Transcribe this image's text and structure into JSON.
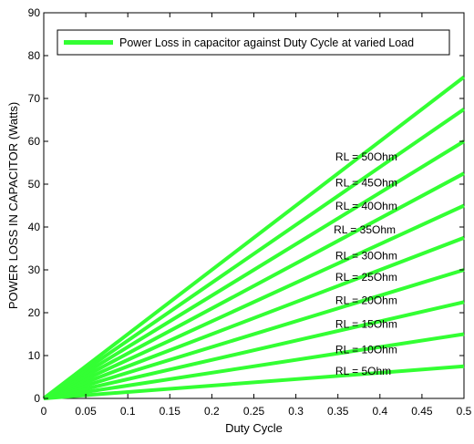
{
  "chart_data": {
    "type": "line",
    "title": "",
    "xlabel": "Duty Cycle",
    "ylabel": "POWER LOSS IN CAPACITOR (Watts)",
    "xlim": [
      0,
      0.5
    ],
    "ylim": [
      0,
      90
    ],
    "x_ticks": [
      "0",
      "0.05",
      "0.1",
      "0.15",
      "0.2",
      "0.25",
      "0.3",
      "0.35",
      "0.4",
      "0.45",
      "0.5"
    ],
    "y_ticks": [
      "0",
      "10",
      "20",
      "30",
      "40",
      "50",
      "60",
      "70",
      "80",
      "90"
    ],
    "grid": false,
    "legend": {
      "placement": "top",
      "entries": [
        "Power Loss in capacitor against Duty Cycle at varied Load"
      ]
    },
    "line_color": "#33ff33",
    "series": [
      {
        "label": "RL = 5Ohm",
        "x": [
          0,
          0.5
        ],
        "y": [
          0,
          7.5
        ]
      },
      {
        "label": "RL = 10Ohm",
        "x": [
          0,
          0.5
        ],
        "y": [
          0,
          15.0
        ]
      },
      {
        "label": "RL = 15Ohm",
        "x": [
          0,
          0.5
        ],
        "y": [
          0,
          22.5
        ]
      },
      {
        "label": "RL = 20Ohm",
        "x": [
          0,
          0.5
        ],
        "y": [
          0,
          30.0
        ]
      },
      {
        "label": "RL = 25Ohm",
        "x": [
          0,
          0.5
        ],
        "y": [
          0,
          37.5
        ]
      },
      {
        "label": "RL = 30Ohm",
        "x": [
          0,
          0.5
        ],
        "y": [
          0,
          45.0
        ]
      },
      {
        "label": "RL = 35Ohm",
        "x": [
          0,
          0.5
        ],
        "y": [
          0,
          52.5
        ]
      },
      {
        "label": "RL = 40Ohm",
        "x": [
          0,
          0.5
        ],
        "y": [
          0,
          60.0
        ]
      },
      {
        "label": "RL = 45Ohm",
        "x": [
          0,
          0.5
        ],
        "y": [
          0,
          67.5
        ]
      },
      {
        "label": "RL = 50Ohm",
        "x": [
          0,
          0.5
        ],
        "y": [
          0,
          75.0
        ]
      }
    ],
    "annotations": [
      {
        "text": "RL = 50Ohm",
        "x": 0.347,
        "y": 55.5
      },
      {
        "text": "RL = 45Ohm",
        "x": 0.347,
        "y": 49.5
      },
      {
        "text": "RL = 40Ohm",
        "x": 0.347,
        "y": 44.0
      },
      {
        "text": "RL = 35Ohm",
        "x": 0.345,
        "y": 38.5
      },
      {
        "text": "RL = 30Ohm",
        "x": 0.347,
        "y": 32.5
      },
      {
        "text": "RL = 25Ohm",
        "x": 0.347,
        "y": 27.5
      },
      {
        "text": "RL = 20Ohm",
        "x": 0.347,
        "y": 22.0
      },
      {
        "text": "RL = 15Ohm",
        "x": 0.347,
        "y": 16.5
      },
      {
        "text": "RL = 10Ohm",
        "x": 0.347,
        "y": 10.5
      },
      {
        "text": "RL = 5Ohm",
        "x": 0.347,
        "y": 5.5
      }
    ]
  }
}
